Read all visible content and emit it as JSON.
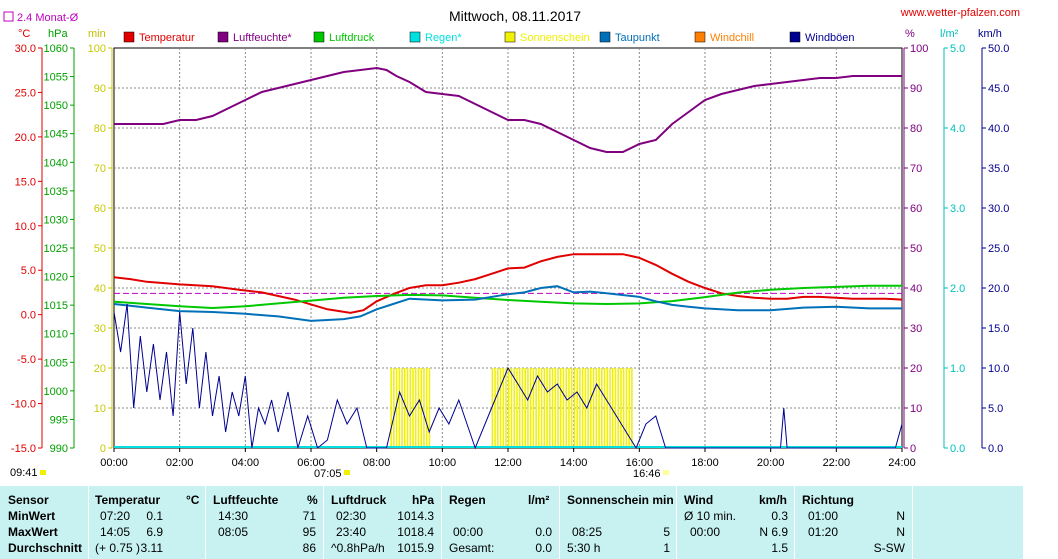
{
  "header": {
    "title": "Mittwoch, 08.11.2017",
    "site": "www.wetter-pfalzen.com",
    "avg_marker": "2.4 Monat-Ø",
    "unit_c": "°C",
    "unit_hpa": "hPa",
    "unit_min": "min",
    "unit_pct": "%",
    "unit_lm2": "l/m²",
    "unit_kmh": "km/h",
    "sunrise": "07:05",
    "sunset": "16:46",
    "time_left": "09:41"
  },
  "legend": [
    {
      "label": "Temperatur",
      "color": "#e00000"
    },
    {
      "label": "Luftfeuchte*",
      "color": "#800080"
    },
    {
      "label": "Luftdruck",
      "color": "#00c800"
    },
    {
      "label": "Regen*",
      "color": "#00e0e0"
    },
    {
      "label": "Sonnenschein",
      "color": "#f0f000"
    },
    {
      "label": "Taupunkt",
      "color": "#0070b8"
    },
    {
      "label": "Windchill",
      "color": "#ff8000"
    },
    {
      "label": "Windböen",
      "color": "#000090"
    }
  ],
  "chart_data": {
    "type": "line",
    "title": "Mittwoch, 08.11.2017",
    "x_ticks": [
      "00:00",
      "02:00",
      "04:00",
      "06:00",
      "08:00",
      "10:00",
      "12:00",
      "14:00",
      "16:00",
      "18:00",
      "20:00",
      "22:00",
      "24:00"
    ],
    "axes": {
      "temperature": {
        "unit": "°C",
        "range": [
          -15,
          30
        ],
        "ticks": [
          "30.0",
          "25.0",
          "20.0",
          "15.0",
          "10.0",
          "5.0",
          "0.0",
          "-5.0",
          "-10.0",
          "-15.0"
        ]
      },
      "pressure": {
        "unit": "hPa",
        "range": [
          990,
          1060
        ],
        "ticks": [
          "1060",
          "1055",
          "1050",
          "1045",
          "1040",
          "1035",
          "1030",
          "1025",
          "1020",
          "1015",
          "1010",
          "1005",
          "1000",
          "995",
          "990"
        ]
      },
      "sunshine": {
        "unit": "min",
        "range": [
          0,
          100
        ],
        "ticks": [
          "100",
          "90",
          "80",
          "70",
          "60",
          "50",
          "40",
          "30",
          "20",
          "10",
          "0"
        ]
      },
      "humidity": {
        "unit": "%",
        "range": [
          0,
          100
        ],
        "ticks": [
          "100",
          "90",
          "80",
          "70",
          "60",
          "50",
          "40",
          "30",
          "20",
          "10",
          "0"
        ]
      },
      "rain": {
        "unit": "l/m²",
        "range": [
          0,
          5
        ],
        "ticks": [
          "5.0",
          "4.0",
          "3.0",
          "2.0",
          "1.0",
          "0.0"
        ]
      },
      "wind": {
        "unit": "km/h",
        "range": [
          0,
          50
        ],
        "ticks": [
          "50.0",
          "45.0",
          "40.0",
          "35.0",
          "30.0",
          "25.0",
          "20.0",
          "15.0",
          "10.0",
          "5.0",
          "0.0"
        ]
      }
    },
    "grid": true,
    "monthly_avg_temperature": 2.4,
    "series": [
      {
        "name": "Temperatur",
        "color": "#e00000",
        "unit": "°C",
        "points": [
          [
            0,
            4.2
          ],
          [
            0.5,
            4.0
          ],
          [
            1,
            3.7
          ],
          [
            2,
            3.4
          ],
          [
            3,
            3.2
          ],
          [
            3.8,
            2.8
          ],
          [
            4.5,
            2.5
          ],
          [
            5.5,
            1.7
          ],
          [
            6.5,
            0.6
          ],
          [
            7.2,
            0.2
          ],
          [
            7.6,
            0.5
          ],
          [
            8,
            1.5
          ],
          [
            8.5,
            2.3
          ],
          [
            9,
            3.0
          ],
          [
            9.5,
            3.3
          ],
          [
            10,
            3.3
          ],
          [
            10.5,
            3.6
          ],
          [
            11,
            4.0
          ],
          [
            11.5,
            4.6
          ],
          [
            12,
            5.2
          ],
          [
            12.5,
            5.3
          ],
          [
            13,
            6.0
          ],
          [
            13.5,
            6.5
          ],
          [
            14,
            6.8
          ],
          [
            14.5,
            6.8
          ],
          [
            15,
            6.8
          ],
          [
            15.5,
            6.8
          ],
          [
            16,
            6.4
          ],
          [
            16.5,
            5.6
          ],
          [
            17,
            4.6
          ],
          [
            17.5,
            3.7
          ],
          [
            18,
            3.0
          ],
          [
            18.5,
            2.4
          ],
          [
            19,
            2.1
          ],
          [
            19.5,
            1.9
          ],
          [
            20,
            1.8
          ],
          [
            20.5,
            1.8
          ],
          [
            21,
            2.0
          ],
          [
            21.5,
            2.0
          ],
          [
            22,
            1.9
          ],
          [
            22.5,
            1.8
          ],
          [
            23,
            1.8
          ],
          [
            23.5,
            1.8
          ],
          [
            24,
            1.7
          ]
        ]
      },
      {
        "name": "Luftfeuchte*",
        "color": "#800080",
        "unit": "%",
        "points": [
          [
            0,
            81
          ],
          [
            0.5,
            81
          ],
          [
            1,
            81
          ],
          [
            1.5,
            81
          ],
          [
            2,
            82
          ],
          [
            2.5,
            82
          ],
          [
            3,
            83
          ],
          [
            3.5,
            85
          ],
          [
            4,
            87
          ],
          [
            4.5,
            89
          ],
          [
            5,
            90
          ],
          [
            5.5,
            91
          ],
          [
            6,
            92
          ],
          [
            6.5,
            93
          ],
          [
            7,
            94
          ],
          [
            7.5,
            94.5
          ],
          [
            8,
            95
          ],
          [
            8.3,
            94.5
          ],
          [
            8.6,
            93
          ],
          [
            9,
            91.5
          ],
          [
            9.5,
            89
          ],
          [
            10,
            88.5
          ],
          [
            10.5,
            88
          ],
          [
            11,
            86
          ],
          [
            11.5,
            84
          ],
          [
            12,
            82
          ],
          [
            12.5,
            82
          ],
          [
            13,
            81
          ],
          [
            13.5,
            79
          ],
          [
            14,
            77
          ],
          [
            14.5,
            75
          ],
          [
            15,
            74
          ],
          [
            15.5,
            74
          ],
          [
            16,
            76
          ],
          [
            16.5,
            77
          ],
          [
            17,
            81
          ],
          [
            17.5,
            84
          ],
          [
            18,
            87
          ],
          [
            18.5,
            88.5
          ],
          [
            19,
            89.5
          ],
          [
            19.5,
            90.5
          ],
          [
            20,
            91
          ],
          [
            20.5,
            91.5
          ],
          [
            21,
            92
          ],
          [
            21.5,
            92.5
          ],
          [
            22,
            92.5
          ],
          [
            22.5,
            93
          ],
          [
            23,
            93
          ],
          [
            23.5,
            93
          ],
          [
            24,
            93
          ]
        ]
      },
      {
        "name": "Luftdruck",
        "color": "#00c800",
        "unit": "hPa",
        "points": [
          [
            0,
            1015.6
          ],
          [
            2,
            1014.8
          ],
          [
            3,
            1014.5
          ],
          [
            4,
            1014.8
          ],
          [
            5,
            1015.3
          ],
          [
            6,
            1015.8
          ],
          [
            7,
            1016.3
          ],
          [
            8,
            1016.6
          ],
          [
            9,
            1016.8
          ],
          [
            10,
            1016.7
          ],
          [
            11,
            1016.3
          ],
          [
            12,
            1015.9
          ],
          [
            13,
            1015.6
          ],
          [
            14,
            1015.3
          ],
          [
            15,
            1015.2
          ],
          [
            16,
            1015.3
          ],
          [
            17,
            1015.7
          ],
          [
            18,
            1016.4
          ],
          [
            19,
            1017.2
          ],
          [
            20,
            1017.7
          ],
          [
            21,
            1018.0
          ],
          [
            22,
            1018.2
          ],
          [
            23,
            1018.4
          ],
          [
            24,
            1018.4
          ]
        ]
      },
      {
        "name": "Taupunkt",
        "color": "#0070b8",
        "unit": "°C",
        "points": [
          [
            0,
            1.2
          ],
          [
            1,
            0.8
          ],
          [
            2,
            0.4
          ],
          [
            3,
            0.3
          ],
          [
            4,
            0.1
          ],
          [
            5,
            -0.2
          ],
          [
            6,
            -0.7
          ],
          [
            7,
            -0.5
          ],
          [
            7.5,
            -0.2
          ],
          [
            8,
            0.6
          ],
          [
            8.5,
            1.2
          ],
          [
            9,
            1.8
          ],
          [
            10,
            1.6
          ],
          [
            11,
            1.7
          ],
          [
            12,
            2.3
          ],
          [
            12.5,
            2.5
          ],
          [
            13,
            3.0
          ],
          [
            13.5,
            3.2
          ],
          [
            14,
            2.5
          ],
          [
            14.5,
            2.6
          ],
          [
            15,
            2.4
          ],
          [
            16,
            2.0
          ],
          [
            16.5,
            1.5
          ],
          [
            17,
            1.1
          ],
          [
            17.5,
            0.9
          ],
          [
            18,
            0.7
          ],
          [
            19,
            0.5
          ],
          [
            20,
            0.5
          ],
          [
            21,
            0.8
          ],
          [
            22,
            0.9
          ],
          [
            23,
            0.7
          ],
          [
            24,
            0.7
          ]
        ]
      },
      {
        "name": "Windböen",
        "color": "#000090",
        "unit": "km/h",
        "points": [
          [
            0,
            17
          ],
          [
            0.2,
            12
          ],
          [
            0.4,
            18
          ],
          [
            0.6,
            5
          ],
          [
            0.8,
            14
          ],
          [
            1,
            7
          ],
          [
            1.2,
            13
          ],
          [
            1.4,
            6
          ],
          [
            1.6,
            12
          ],
          [
            1.8,
            4
          ],
          [
            2,
            17
          ],
          [
            2.2,
            8
          ],
          [
            2.4,
            15
          ],
          [
            2.6,
            5
          ],
          [
            2.8,
            12
          ],
          [
            3,
            4
          ],
          [
            3.2,
            9
          ],
          [
            3.4,
            2
          ],
          [
            3.6,
            7
          ],
          [
            3.8,
            4
          ],
          [
            4,
            9
          ],
          [
            4.2,
            0
          ],
          [
            4.4,
            5
          ],
          [
            4.6,
            3
          ],
          [
            4.8,
            6
          ],
          [
            5,
            2
          ],
          [
            5.3,
            7
          ],
          [
            5.6,
            0
          ],
          [
            5.9,
            4
          ],
          [
            6.2,
            0
          ],
          [
            6.5,
            1
          ],
          [
            6.8,
            6
          ],
          [
            7.1,
            3
          ],
          [
            7.4,
            5
          ],
          [
            7.7,
            0
          ],
          [
            8.3,
            0
          ],
          [
            8.7,
            7
          ],
          [
            9,
            4
          ],
          [
            9.3,
            6
          ],
          [
            9.6,
            2
          ],
          [
            9.9,
            5
          ],
          [
            10.2,
            3
          ],
          [
            10.5,
            6
          ],
          [
            11,
            0
          ],
          [
            11.5,
            5
          ],
          [
            12,
            10
          ],
          [
            12.3,
            8
          ],
          [
            12.6,
            6
          ],
          [
            12.9,
            9
          ],
          [
            13.2,
            7
          ],
          [
            13.5,
            8
          ],
          [
            13.8,
            6
          ],
          [
            14.1,
            7
          ],
          [
            14.4,
            5
          ],
          [
            14.7,
            8
          ],
          [
            15,
            6
          ],
          [
            15.3,
            4
          ],
          [
            15.6,
            2
          ],
          [
            15.9,
            0
          ],
          [
            16.2,
            3
          ],
          [
            16.5,
            4
          ],
          [
            16.8,
            0
          ],
          [
            17.5,
            0
          ],
          [
            18,
            0
          ],
          [
            19.5,
            0
          ],
          [
            20.3,
            0
          ],
          [
            20.4,
            5
          ],
          [
            20.5,
            0
          ],
          [
            23.8,
            0
          ],
          [
            24,
            3
          ]
        ]
      }
    ],
    "sunshine_blocks": [
      {
        "start": "08:25",
        "end": "09:40",
        "value": 5
      },
      {
        "start": "11:30",
        "end": "15:50",
        "value": 5
      }
    ]
  },
  "summary": {
    "headers": {
      "sensor": "Sensor",
      "temp": "Temperatur",
      "temp_unit": "°C",
      "hum": "Luftfeuchte",
      "hum_unit": "%",
      "press": "Luftdruck",
      "press_unit": "hPa",
      "rain": "Regen",
      "rain_unit": "l/m²",
      "sun": "Sonnenschein min",
      "wind": "Wind",
      "wind_unit": "km/h",
      "dir": "Richtung"
    },
    "rows": {
      "min": {
        "label": "MinWert",
        "temp_time": "07:20",
        "temp_val": "0.1",
        "hum_time": "14:30",
        "hum_val": "71",
        "press_time": "02:30",
        "press_val": "1014.3",
        "rain_time": "",
        "rain_val": "",
        "sun_time": "",
        "sun_val": "",
        "wind_time": "Ø 10 min.",
        "wind_val": "0.3",
        "dir_time": "01:00",
        "dir_val": "N"
      },
      "max": {
        "label": "MaxWert",
        "temp_time": "14:05",
        "temp_val": "6.9",
        "hum_time": "08:05",
        "hum_val": "95",
        "press_time": "23:40",
        "press_val": "1018.4",
        "rain_time": "00:00",
        "rain_val": "0.0",
        "sun_time": "08:25",
        "sun_val": "5",
        "wind_time": "00:00",
        "wind_val": "N 6.9",
        "dir_time": "01:20",
        "dir_val": "N"
      },
      "avg": {
        "label": "Durchschnitt",
        "temp_time": "(+ 0.75 )",
        "temp_val": "3.11",
        "hum_time": "",
        "hum_val": "86",
        "press_time": "^0.8hPa/h",
        "press_val": "1015.9",
        "rain_time": "Gesamt:",
        "rain_val": "0.0",
        "sun_time": "5:30 h",
        "sun_val": "1",
        "wind_time": "",
        "wind_val": "1.5",
        "dir_time": "",
        "dir_val": "S-SW"
      }
    }
  }
}
